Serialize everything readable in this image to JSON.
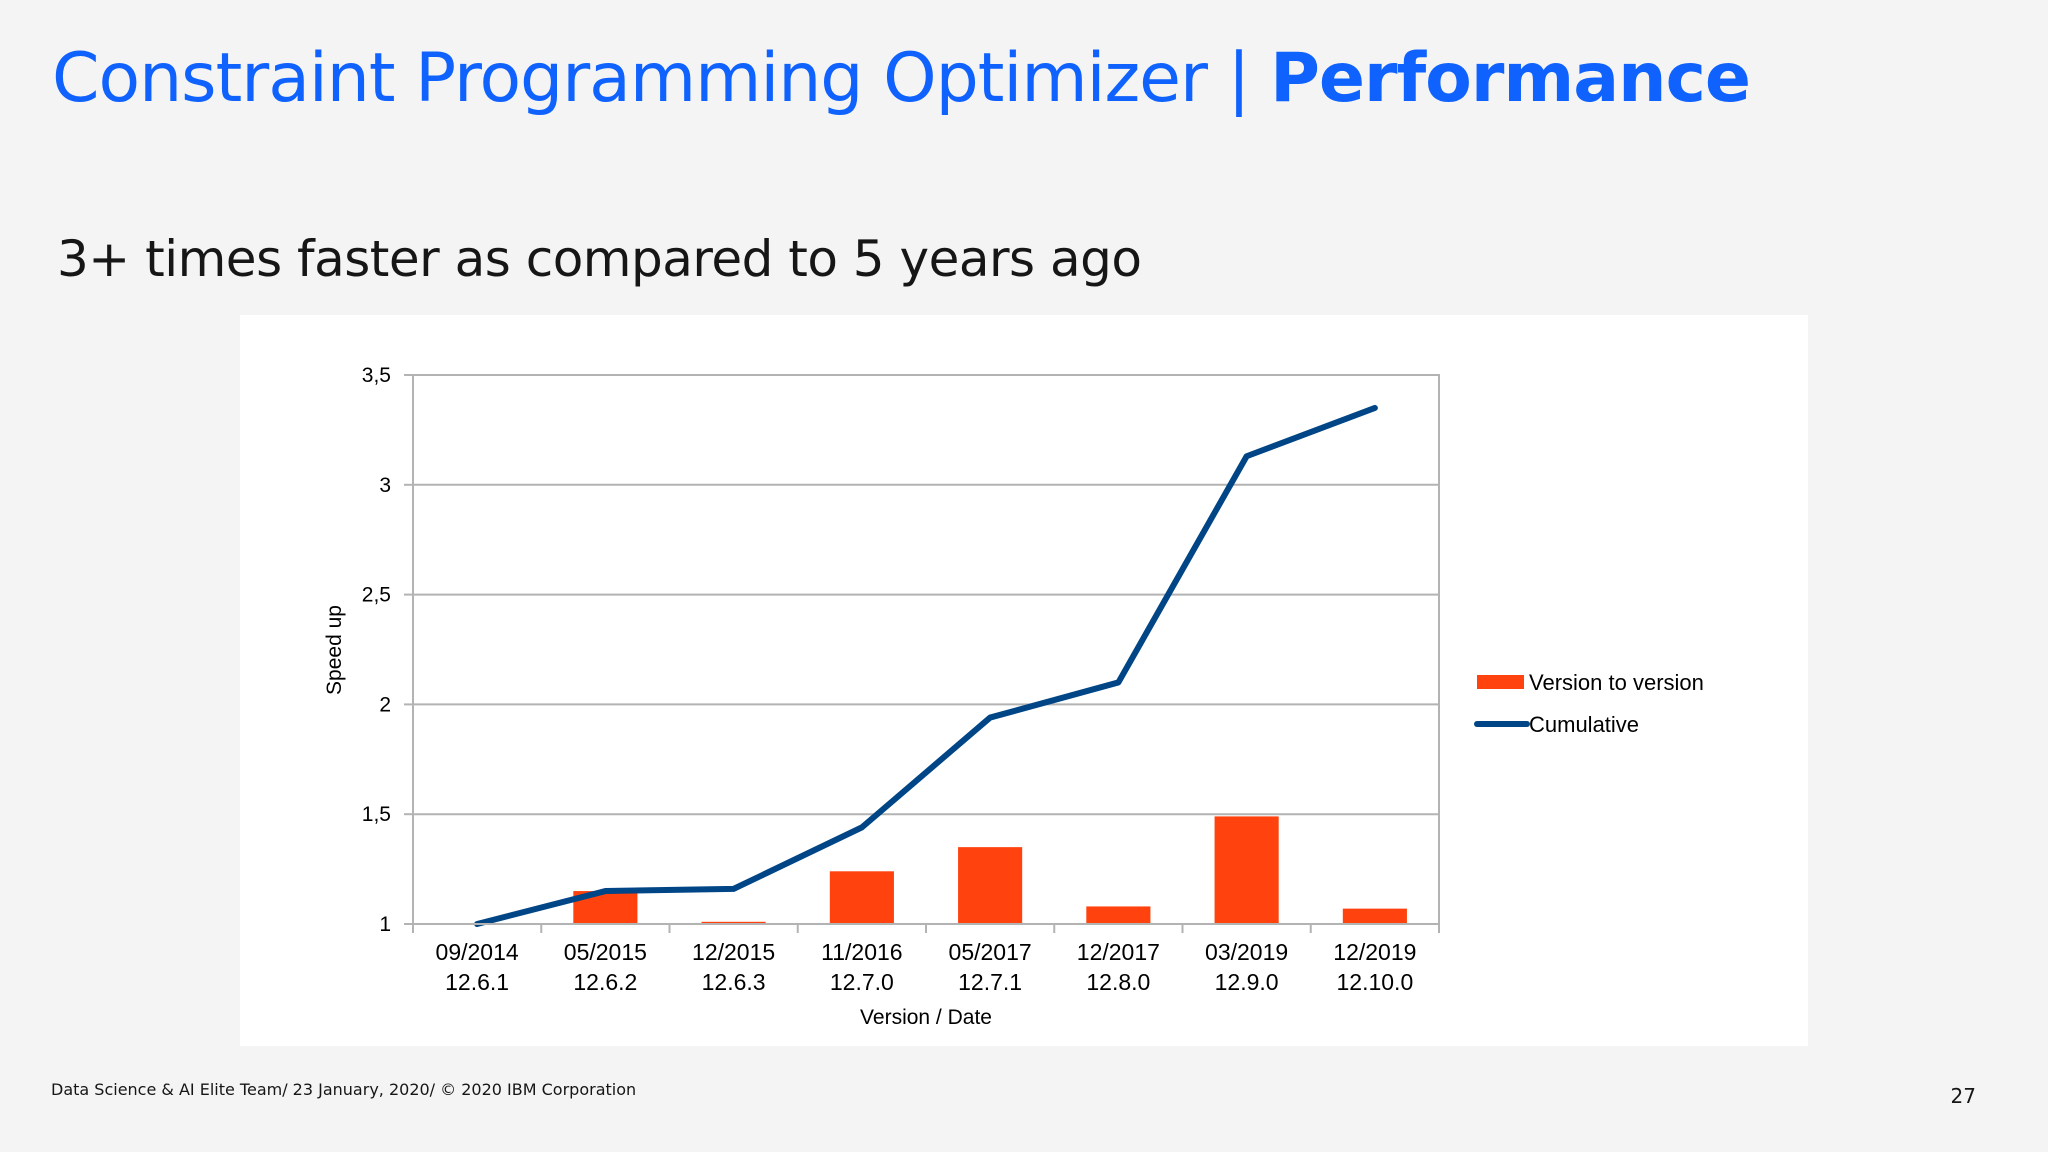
{
  "slide": {
    "title_regular": "Constraint Programming Optimizer | ",
    "title_bold": "Performance",
    "subtitle": "3+ times faster as compared to 5 years ago",
    "footer": "Data Science & AI Elite Team/ 23 January, 2020/ © 2020 IBM Corporation",
    "page_number": "27"
  },
  "colors": {
    "title": "#0f62fe",
    "bar": "#ff420e",
    "line": "#004586",
    "grid": "#b3b3b3"
  },
  "chart_data": {
    "type": "bar",
    "categories": [
      [
        "09/2014",
        "12.6.1"
      ],
      [
        "05/2015",
        "12.6.2"
      ],
      [
        "12/2015",
        "12.6.3"
      ],
      [
        "11/2016",
        "12.7.0"
      ],
      [
        "05/2017",
        "12.7.1"
      ],
      [
        "12/2017",
        "12.8.0"
      ],
      [
        "03/2019",
        "12.9.0"
      ],
      [
        "12/2019",
        "12.10.0"
      ]
    ],
    "series": [
      {
        "name": "Version to version",
        "type": "bar",
        "values": [
          1.0,
          1.15,
          1.01,
          1.24,
          1.35,
          1.08,
          1.49,
          1.07
        ]
      },
      {
        "name": "Cumulative",
        "type": "line",
        "values": [
          1.0,
          1.15,
          1.16,
          1.44,
          1.94,
          2.1,
          3.13,
          3.35
        ]
      }
    ],
    "xlabel": "Version / Date",
    "ylabel": "Speed up",
    "ylim": [
      1,
      3.5
    ],
    "yticks": [
      1,
      1.5,
      2,
      2.5,
      3,
      3.5
    ],
    "ytick_labels": [
      "1",
      "1,5",
      "2",
      "2,5",
      "3",
      "3,5"
    ],
    "grid": true,
    "legend": "right"
  }
}
